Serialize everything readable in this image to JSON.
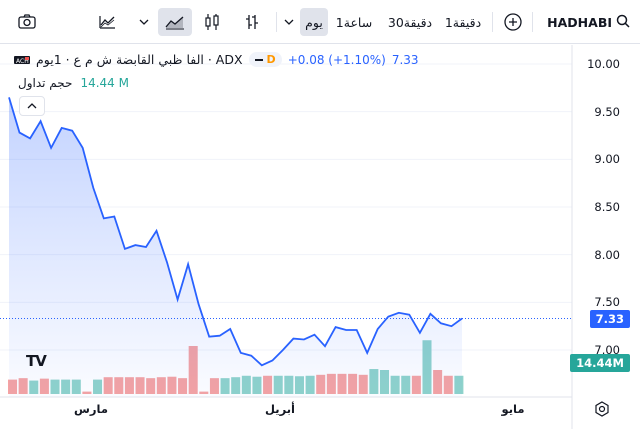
{
  "toolbar": {
    "symbol": "HADHABI",
    "intervals": [
      "1دقيقة",
      "30دقيقة",
      "1ساعة",
      "يوم"
    ],
    "selected_interval": "يوم",
    "icons": [
      "search-icon",
      "add-compare-icon",
      "chevron-down-icon",
      "bar-chart-icon",
      "candlestick-icon",
      "area-chart-icon",
      "line-chart-icon",
      "chevron-down-icon",
      "camera-icon"
    ]
  },
  "legend": {
    "title": "الفا ظبي القابضة ش م ع · 1يوم · ADX",
    "price": "7.33",
    "change": "+0.08 (+1.10%)",
    "badge": "D",
    "volume_label": "حجم تداول",
    "volume_value": "14.44 M"
  },
  "price_axis": {
    "ticks": [
      "10.00",
      "9.50",
      "9.00",
      "8.50",
      "8.00",
      "7.50",
      "7.00"
    ],
    "last_price": "7.33",
    "last_volume": "14.44M"
  },
  "time_axis": {
    "labels": [
      "مارس",
      "أبريل",
      "مايو"
    ]
  },
  "watermark": "TV",
  "colors": {
    "line": "#2962ff",
    "up": "#26a69a",
    "down": "#ef5350"
  },
  "chart_data": {
    "type": "area",
    "ylim": [
      6.75,
      10.1
    ],
    "price_series": [
      9.65,
      9.28,
      9.22,
      9.4,
      9.12,
      9.33,
      9.3,
      9.12,
      8.7,
      8.38,
      8.4,
      8.06,
      8.1,
      8.08,
      8.25,
      7.92,
      7.53,
      7.9,
      7.48,
      7.14,
      7.15,
      7.22,
      6.97,
      6.94,
      6.84,
      6.89,
      7.0,
      7.12,
      7.11,
      7.16,
      7.04,
      7.24,
      7.21,
      7.21,
      6.97,
      7.22,
      7.35,
      7.39,
      7.37,
      7.18,
      7.38,
      7.28,
      7.25,
      7.33
    ],
    "volume_series": [
      {
        "v": 0.3,
        "up": false
      },
      {
        "v": 0.33,
        "up": false
      },
      {
        "v": 0.28,
        "up": true
      },
      {
        "v": 0.32,
        "up": false
      },
      {
        "v": 0.3,
        "up": true
      },
      {
        "v": 0.3,
        "up": true
      },
      {
        "v": 0.3,
        "up": true
      },
      {
        "v": 0.05,
        "up": false
      },
      {
        "v": 0.3,
        "up": true
      },
      {
        "v": 0.35,
        "up": false
      },
      {
        "v": 0.35,
        "up": false
      },
      {
        "v": 0.35,
        "up": false
      },
      {
        "v": 0.35,
        "up": false
      },
      {
        "v": 0.33,
        "up": false
      },
      {
        "v": 0.35,
        "up": false
      },
      {
        "v": 0.36,
        "up": false
      },
      {
        "v": 0.33,
        "up": false
      },
      {
        "v": 1.0,
        "up": false
      },
      {
        "v": 0.05,
        "up": false
      },
      {
        "v": 0.33,
        "up": false
      },
      {
        "v": 0.33,
        "up": true
      },
      {
        "v": 0.35,
        "up": true
      },
      {
        "v": 0.38,
        "up": true
      },
      {
        "v": 0.36,
        "up": true
      },
      {
        "v": 0.38,
        "up": false
      },
      {
        "v": 0.38,
        "up": true
      },
      {
        "v": 0.38,
        "up": true
      },
      {
        "v": 0.37,
        "up": true
      },
      {
        "v": 0.38,
        "up": true
      },
      {
        "v": 0.4,
        "up": false
      },
      {
        "v": 0.42,
        "up": false
      },
      {
        "v": 0.42,
        "up": false
      },
      {
        "v": 0.42,
        "up": false
      },
      {
        "v": 0.4,
        "up": false
      },
      {
        "v": 0.52,
        "up": true
      },
      {
        "v": 0.5,
        "up": true
      },
      {
        "v": 0.38,
        "up": true
      },
      {
        "v": 0.38,
        "up": true
      },
      {
        "v": 0.38,
        "up": false
      },
      {
        "v": 1.12,
        "up": true
      },
      {
        "v": 0.5,
        "up": false
      },
      {
        "v": 0.38,
        "up": false
      },
      {
        "v": 0.38,
        "up": true
      }
    ]
  }
}
